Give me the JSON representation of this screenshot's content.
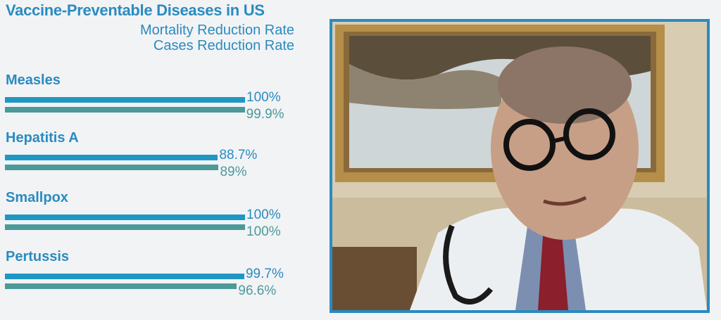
{
  "chart_data": {
    "type": "bar",
    "orientation": "horizontal",
    "title": "Vaccine-Preventable Diseases in US",
    "categories": [
      "Measles",
      "Hepatitis A",
      "Smallpox",
      "Pertussis"
    ],
    "series": [
      {
        "name": "Mortality Reduction Rate",
        "color": "#1f97c5",
        "values": [
          100,
          88.7,
          100,
          99.7
        ],
        "labels": [
          "100%",
          "88.7%",
          "100%",
          "99.7%"
        ]
      },
      {
        "name": "Cases Reduction Rate",
        "color": "#4b9a99",
        "values": [
          99.9,
          89,
          100,
          96.6
        ],
        "labels": [
          "99.9%",
          "89%",
          "100%",
          "96.6%"
        ]
      }
    ],
    "xlim": [
      0,
      100
    ],
    "legend": "top-right",
    "grid": false
  },
  "video": {
    "description_icon": "presenter-video-icon"
  }
}
